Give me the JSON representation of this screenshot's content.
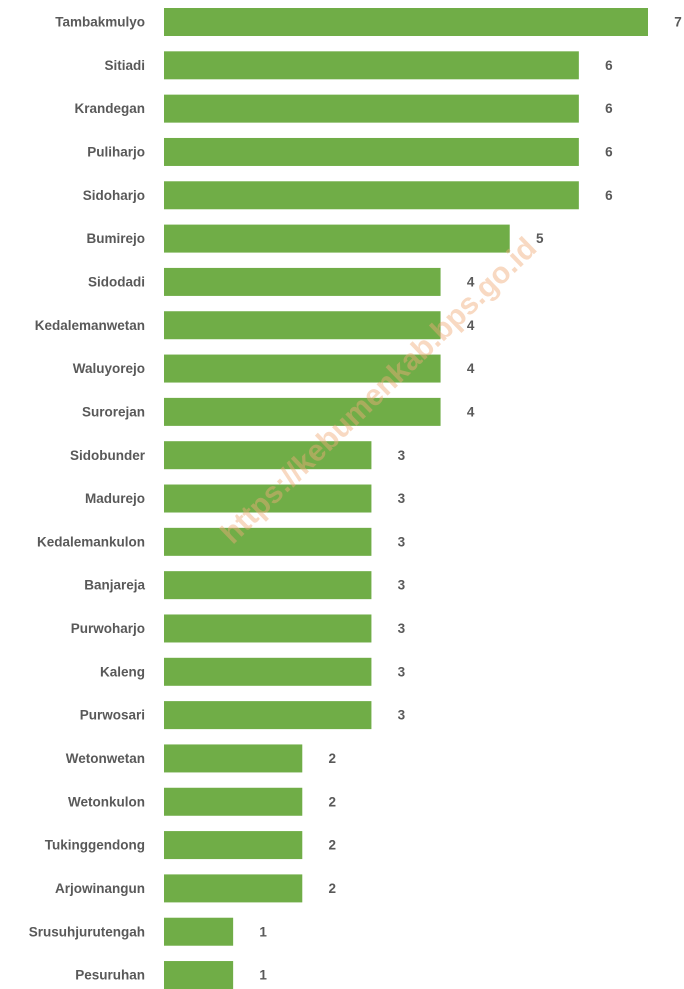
{
  "chart_data": {
    "type": "barh",
    "color": "#70ad47",
    "categories": [
      "Tambakmulyo",
      "Sitiadi",
      "Krandegan",
      "Puliharjo",
      "Sidoharjo",
      "Bumirejo",
      "Sidodadi",
      "Kedalemanwetan",
      "Waluyorejo",
      "Surorejan",
      "Sidobunder",
      "Madurejo",
      "Kedalemankulon",
      "Banjareja",
      "Purwoharjo",
      "Kaleng",
      "Purwosari",
      "Wetonwetan",
      "Wetonkulon",
      "Tukinggendong",
      "Arjowinangun",
      "Srusuhjurutengah",
      "Pesuruhan"
    ],
    "values": [
      7,
      6,
      6,
      6,
      6,
      5,
      4,
      4,
      4,
      4,
      3,
      3,
      3,
      3,
      3,
      3,
      3,
      2,
      2,
      2,
      2,
      1,
      1
    ],
    "watermark": "https://kebumenkab.bps.go.id"
  }
}
